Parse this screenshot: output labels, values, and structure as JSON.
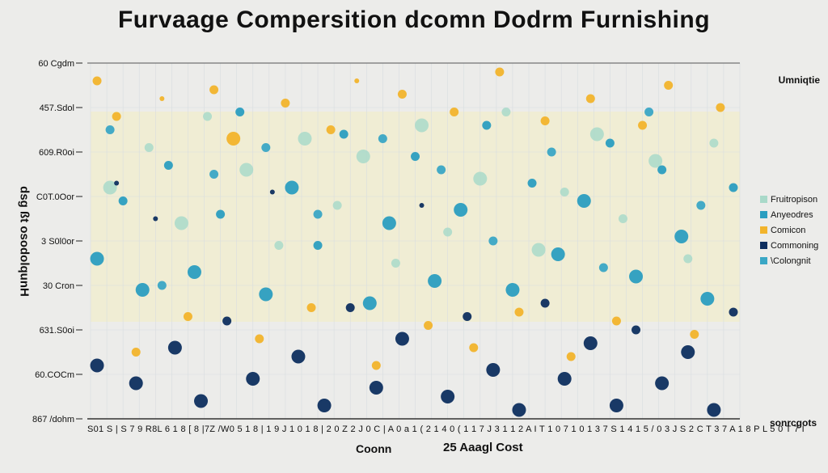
{
  "chart_data": {
    "type": "scatter",
    "title": "Furvaage Compersition  dcomn Dodrm Furnishing",
    "subtitle": "Umniqtie",
    "corner_label": "sonrcgots",
    "ylabel": "dsg ßt osodolqunH",
    "xlabel_parts": [
      "Coonn",
      "25 Aaagl Cost"
    ],
    "xtick_text": "S01 S | S 7 9 R8L 6 1 8 [ 8 |7Z /W0 5 1 8 | 1 9 J 1 0 1 8 | 2 0 Z 2 J 0 C | A 0 a 1 ( 2 1   4 0 ( 1 1  7 J 3 1 1 2 A  I T 1 0  7 1 0 1 3 7 S 1 4 1 5 / 0 3  J S 2 C T 3 7 A 1 8 P L 5 0 T 7 I",
    "yticks": [
      "867 /dohm",
      "60.COCm",
      "631.S0oi",
      "30 Cron",
      "3 S0l0or",
      "C0T.0Oor",
      "609.R0oi",
      "457.Sdol",
      "60 Cgdm"
    ],
    "ylim": [
      0,
      8
    ],
    "xlim": [
      0,
      100
    ],
    "grid": true,
    "legend_position": "right",
    "series": [
      {
        "name": "Fruitropison",
        "color": "#a9d9c9",
        "points": [
          [
            3,
            5.2,
            3
          ],
          [
            9,
            6.1,
            2
          ],
          [
            14,
            4.4,
            3
          ],
          [
            18,
            6.8,
            2
          ],
          [
            24,
            5.6,
            3
          ],
          [
            29,
            3.9,
            2
          ],
          [
            33,
            6.3,
            3
          ],
          [
            38,
            4.8,
            2
          ],
          [
            42,
            5.9,
            3
          ],
          [
            47,
            3.5,
            2
          ],
          [
            51,
            6.6,
            3
          ],
          [
            55,
            4.2,
            2
          ],
          [
            60,
            5.4,
            3
          ],
          [
            64,
            6.9,
            2
          ],
          [
            69,
            3.8,
            3
          ],
          [
            73,
            5.1,
            2
          ],
          [
            78,
            6.4,
            3
          ],
          [
            82,
            4.5,
            2
          ],
          [
            87,
            5.8,
            3
          ],
          [
            92,
            3.6,
            2
          ],
          [
            96,
            6.2,
            2
          ]
        ]
      },
      {
        "name": "Anyeodres",
        "color": "#2b9ec0",
        "points": [
          [
            1,
            3.6,
            3
          ],
          [
            5,
            4.9,
            2
          ],
          [
            8,
            2.9,
            3
          ],
          [
            12,
            5.7,
            2
          ],
          [
            16,
            3.3,
            3
          ],
          [
            20,
            4.6,
            2
          ],
          [
            23,
            6.9,
            2
          ],
          [
            27,
            2.8,
            3
          ],
          [
            31,
            5.2,
            3
          ],
          [
            35,
            3.9,
            2
          ],
          [
            39,
            6.4,
            2
          ],
          [
            43,
            2.6,
            3
          ],
          [
            46,
            4.4,
            3
          ],
          [
            50,
            5.9,
            2
          ],
          [
            53,
            3.1,
            3
          ],
          [
            57,
            4.7,
            3
          ],
          [
            61,
            6.6,
            2
          ],
          [
            65,
            2.9,
            3
          ],
          [
            68,
            5.3,
            2
          ],
          [
            72,
            3.7,
            3
          ],
          [
            76,
            4.9,
            3
          ],
          [
            80,
            6.2,
            2
          ],
          [
            84,
            3.2,
            3
          ],
          [
            88,
            5.6,
            2
          ],
          [
            91,
            4.1,
            3
          ],
          [
            95,
            2.7,
            3
          ],
          [
            99,
            5.2,
            2
          ]
        ]
      },
      {
        "name": "Comicon",
        "color": "#f2b42c",
        "points": [
          [
            1,
            7.6,
            2
          ],
          [
            4,
            6.8,
            2
          ],
          [
            7,
            1.5,
            2
          ],
          [
            11,
            7.2,
            1
          ],
          [
            15,
            2.3,
            2
          ],
          [
            19,
            7.4,
            2
          ],
          [
            22,
            6.3,
            3
          ],
          [
            26,
            1.8,
            2
          ],
          [
            30,
            7.1,
            2
          ],
          [
            34,
            2.5,
            2
          ],
          [
            37,
            6.5,
            2
          ],
          [
            41,
            7.6,
            1
          ],
          [
            44,
            1.2,
            2
          ],
          [
            48,
            7.3,
            2
          ],
          [
            52,
            2.1,
            2
          ],
          [
            56,
            6.9,
            2
          ],
          [
            59,
            1.6,
            2
          ],
          [
            63,
            7.8,
            2
          ],
          [
            66,
            2.4,
            2
          ],
          [
            70,
            6.7,
            2
          ],
          [
            74,
            1.4,
            2
          ],
          [
            77,
            7.2,
            2
          ],
          [
            81,
            2.2,
            2
          ],
          [
            85,
            6.6,
            2
          ],
          [
            89,
            7.5,
            2
          ],
          [
            93,
            1.9,
            2
          ],
          [
            97,
            7.0,
            2
          ]
        ]
      },
      {
        "name": "Commoning",
        "color": "#0e2f5f",
        "points": [
          [
            1,
            1.2,
            3
          ],
          [
            4,
            5.3,
            1
          ],
          [
            7,
            0.8,
            3
          ],
          [
            10,
            4.5,
            1
          ],
          [
            13,
            1.6,
            3
          ],
          [
            17,
            0.4,
            3
          ],
          [
            21,
            2.2,
            2
          ],
          [
            25,
            0.9,
            3
          ],
          [
            28,
            5.1,
            1
          ],
          [
            32,
            1.4,
            3
          ],
          [
            36,
            0.3,
            3
          ],
          [
            40,
            2.5,
            2
          ],
          [
            44,
            0.7,
            3
          ],
          [
            48,
            1.8,
            3
          ],
          [
            51,
            4.8,
            1
          ],
          [
            55,
            0.5,
            3
          ],
          [
            58,
            2.3,
            2
          ],
          [
            62,
            1.1,
            3
          ],
          [
            66,
            0.2,
            3
          ],
          [
            70,
            2.6,
            2
          ],
          [
            73,
            0.9,
            3
          ],
          [
            77,
            1.7,
            3
          ],
          [
            81,
            0.3,
            3
          ],
          [
            84,
            2.0,
            2
          ],
          [
            88,
            0.8,
            3
          ],
          [
            92,
            1.5,
            3
          ],
          [
            96,
            0.2,
            3
          ],
          [
            99,
            2.4,
            2
          ]
        ]
      },
      {
        "name": "\\Colongnit",
        "color": "#3aa7c5",
        "points": [
          [
            3,
            6.5,
            2
          ],
          [
            11,
            3.0,
            2
          ],
          [
            19,
            5.5,
            2
          ],
          [
            27,
            6.1,
            2
          ],
          [
            35,
            4.6,
            2
          ],
          [
            45,
            6.3,
            2
          ],
          [
            54,
            5.6,
            2
          ],
          [
            62,
            4.0,
            2
          ],
          [
            71,
            6.0,
            2
          ],
          [
            79,
            3.4,
            2
          ],
          [
            86,
            6.9,
            2
          ],
          [
            94,
            4.8,
            2
          ]
        ]
      }
    ]
  }
}
